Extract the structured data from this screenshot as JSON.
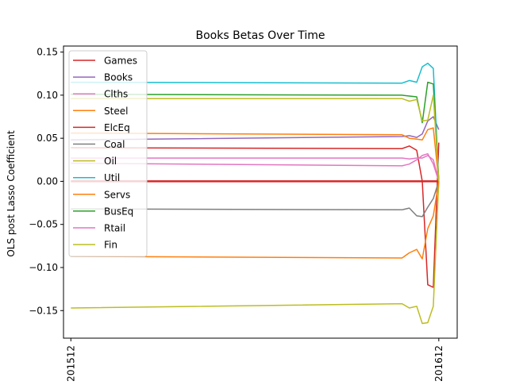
{
  "chart_data": {
    "type": "line",
    "title": "Books Betas Over Time",
    "xlabel": "",
    "ylabel": "OLS post Lasso Coefficient",
    "x_tick_labels": [
      "201512",
      "201612"
    ],
    "y_ticks": [
      -0.15,
      -0.1,
      -0.05,
      0.0,
      0.05,
      0.1,
      0.15
    ],
    "y_tick_labels": [
      "−0.15",
      "−0.10",
      "−0.05",
      "0.00",
      "0.05",
      "0.10",
      "0.15"
    ],
    "ylim": [
      -0.182,
      0.157
    ],
    "xlim": [
      -0.02,
      1.05
    ],
    "grid": false,
    "legend_position": "upper-left",
    "x": [
      0,
      0.9,
      0.92,
      0.94,
      0.955,
      0.97,
      0.985,
      1.0
    ],
    "series": [
      {
        "name": "Games",
        "color": "#d62728",
        "values": [
          0.039,
          0.038,
          0.041,
          0.036,
          0.0,
          -0.12,
          -0.123,
          0.045
        ]
      },
      {
        "name": "Books",
        "color": "#9467bd",
        "values": [
          0.048,
          0.052,
          0.053,
          0.051,
          0.055,
          0.07,
          0.075,
          0.06
        ]
      },
      {
        "name": "Clths",
        "color": "#e377c2",
        "values": [
          0.027,
          0.027,
          0.026,
          0.027,
          0.027,
          0.03,
          0.025,
          0.0
        ]
      },
      {
        "name": "Steel",
        "color": "#ff7f0e",
        "values": [
          0.056,
          0.054,
          0.05,
          0.049,
          0.048,
          0.06,
          0.062,
          0.0
        ]
      },
      {
        "name": "ElcEq",
        "color": "#d62728",
        "values": [
          0.0,
          0.0,
          0.0,
          0.0,
          0.0,
          0.0,
          0.0,
          0.0
        ]
      },
      {
        "name": "Coal",
        "color": "#7f7f7f",
        "values": [
          -0.032,
          -0.033,
          -0.031,
          -0.04,
          -0.041,
          -0.03,
          -0.02,
          0.0
        ]
      },
      {
        "name": "Oil",
        "color": "#bcbd22",
        "values": [
          -0.147,
          -0.142,
          -0.147,
          -0.145,
          -0.165,
          -0.164,
          -0.145,
          0.0
        ]
      },
      {
        "name": "Util",
        "color": "#17becf",
        "values": [
          0.115,
          0.114,
          0.117,
          0.115,
          0.133,
          0.137,
          0.131,
          0.0
        ]
      },
      {
        "name": "Servs",
        "color": "#ff7f0e",
        "values": [
          -0.087,
          -0.089,
          -0.083,
          -0.079,
          -0.09,
          -0.055,
          -0.04,
          0.0
        ]
      },
      {
        "name": "BusEq",
        "color": "#2ca02c",
        "values": [
          0.101,
          0.1,
          0.099,
          0.098,
          0.068,
          0.115,
          0.113,
          0.0
        ]
      },
      {
        "name": "Rtail",
        "color": "#e377c2",
        "values": [
          0.021,
          0.018,
          0.02,
          0.025,
          0.03,
          0.032,
          0.02,
          0.0
        ]
      },
      {
        "name": "Fin",
        "color": "#bcbd22",
        "values": [
          0.096,
          0.096,
          0.093,
          0.095,
          0.07,
          0.071,
          0.1,
          0.0
        ]
      }
    ]
  }
}
